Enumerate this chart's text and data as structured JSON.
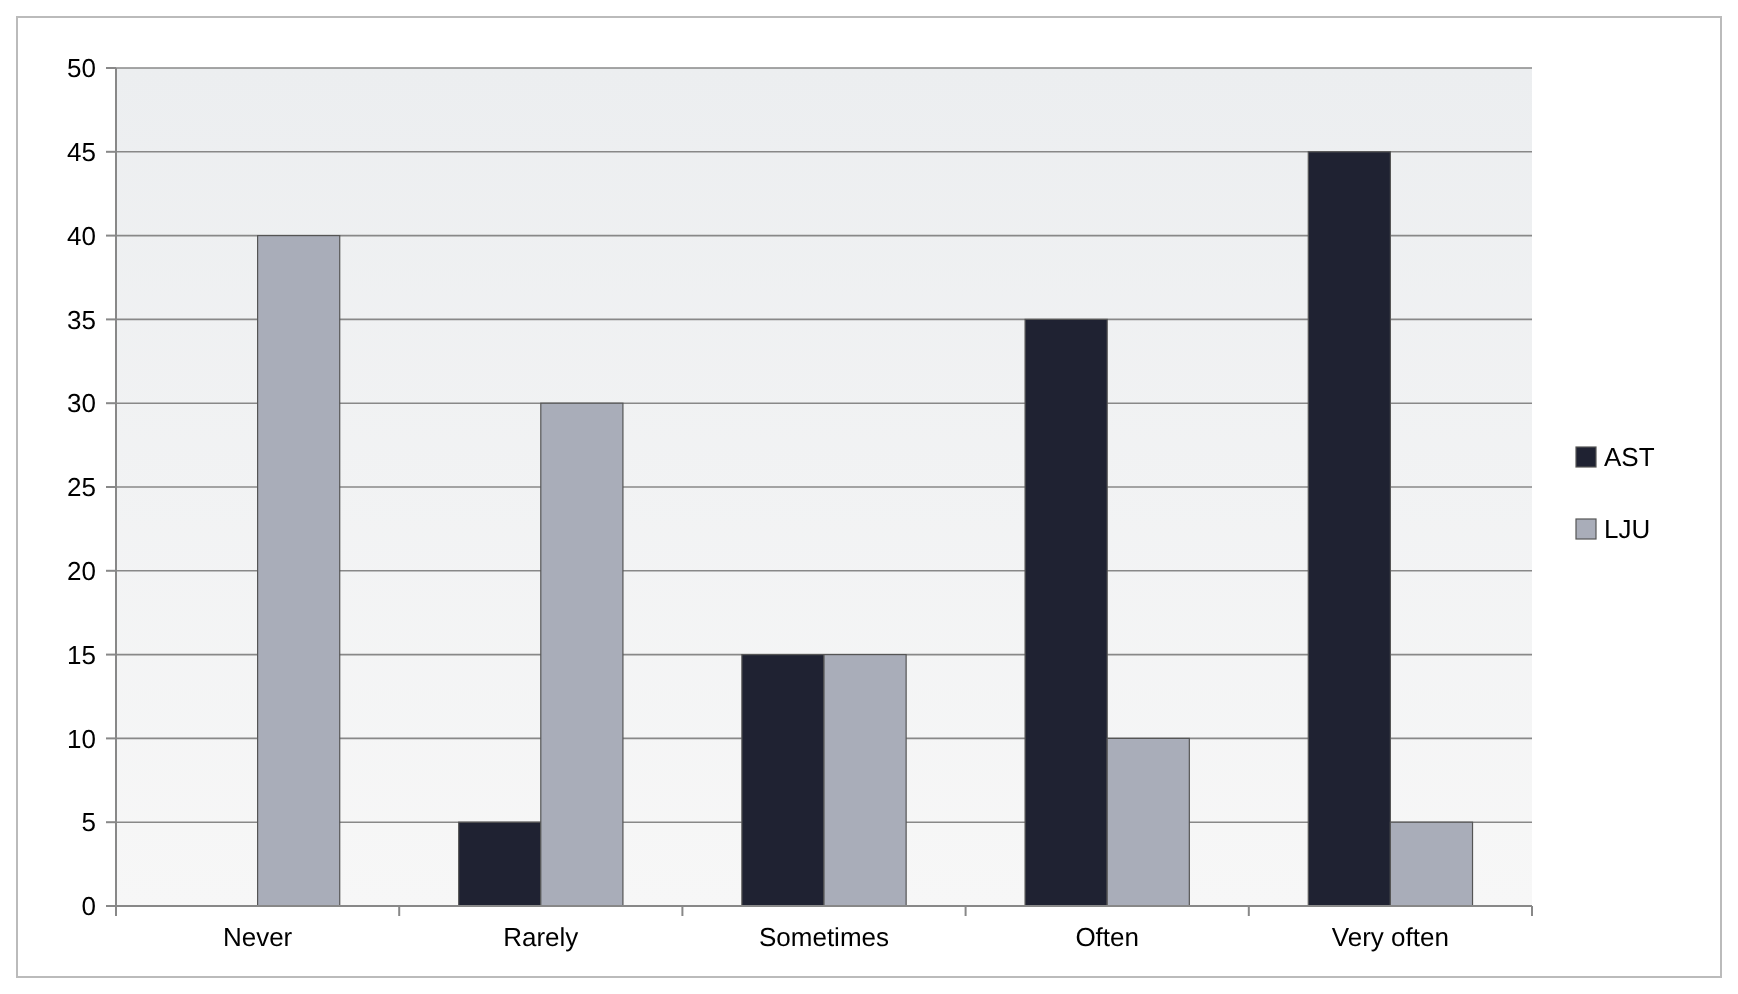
{
  "chart_data": {
    "type": "bar",
    "categories": [
      "Never",
      "Rarely",
      "Sometimes",
      "Often",
      "Very often"
    ],
    "series": [
      {
        "name": "AST",
        "color": "#1f2232",
        "values": [
          0,
          5,
          15,
          35,
          45
        ]
      },
      {
        "name": "LJU",
        "color": "#a9adb9",
        "values": [
          40,
          30,
          15,
          10,
          5
        ]
      }
    ],
    "ylim": [
      0,
      50
    ],
    "yticks": [
      0,
      5,
      10,
      15,
      20,
      25,
      30,
      35,
      40,
      45,
      50
    ],
    "grid": "y",
    "legend": "right"
  }
}
